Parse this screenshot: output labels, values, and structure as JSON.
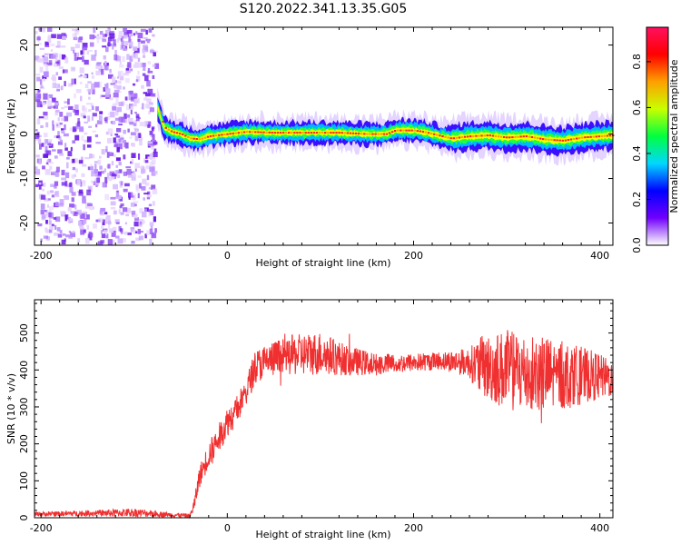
{
  "figure": {
    "title": "S120.2022.341.13.35.G05"
  },
  "chart_data": [
    {
      "type": "heatmap",
      "name": "spectrogram",
      "xlabel": "Height of straight line (km)",
      "ylabel": "Frequency (Hz)",
      "xlim": [
        -207,
        414
      ],
      "ylim": [
        -25,
        24
      ],
      "xticks": [
        -200,
        0,
        200,
        400
      ],
      "yticks": [
        -20,
        -10,
        0,
        10,
        20
      ],
      "colorbar": {
        "label": "Normalized spectral amplitude",
        "range": [
          0,
          0.95
        ],
        "ticks": [
          0.0,
          0.2,
          0.4,
          0.6,
          0.8
        ],
        "colors": [
          "#ffffff",
          "#7000ff",
          "#0000ff",
          "#00d8ff",
          "#00ff40",
          "#c8ff00",
          "#ffa000",
          "#ff0000",
          "#ff1060"
        ]
      },
      "noise_region_x": [
        -207,
        -75
      ],
      "ridge": {
        "x": [
          -75,
          -68,
          -60,
          -50,
          -40,
          -30,
          -20,
          0,
          20,
          50,
          80,
          120,
          150,
          170,
          180,
          200,
          210,
          220,
          240,
          260,
          280,
          300,
          320,
          340,
          360,
          380,
          400,
          414
        ],
        "freq": [
          6.0,
          1.5,
          0.5,
          0.0,
          -1.0,
          -1.2,
          -0.5,
          0.0,
          0.5,
          0.3,
          0.3,
          0.3,
          0.0,
          0.0,
          0.8,
          0.8,
          0.5,
          0.0,
          -1.0,
          -0.5,
          -0.3,
          -0.8,
          -0.5,
          -1.2,
          -1.5,
          -0.8,
          -0.5,
          -0.3
        ]
      }
    },
    {
      "type": "line",
      "name": "snr",
      "xlabel": "Height of straight line (km)",
      "ylabel": "SNR (10 * v/v)",
      "xlim": [
        -207,
        414
      ],
      "ylim": [
        0,
        590
      ],
      "xticks": [
        -200,
        0,
        200,
        400
      ],
      "yticks": [
        0,
        100,
        200,
        300,
        400,
        500
      ],
      "line_color": "#f03030",
      "envelope": {
        "x": [
          -207,
          -150,
          -100,
          -60,
          -40,
          -35,
          -30,
          -20,
          -10,
          0,
          10,
          20,
          30,
          50,
          70,
          100,
          130,
          160,
          200,
          230,
          260,
          270,
          300,
          330,
          360,
          390,
          414
        ],
        "mean": [
          10,
          12,
          14,
          8,
          5,
          40,
          110,
          170,
          210,
          260,
          290,
          340,
          410,
          430,
          440,
          445,
          425,
          415,
          420,
          425,
          420,
          410,
          400,
          390,
          385,
          385,
          375
        ],
        "amp": [
          6,
          8,
          12,
          6,
          6,
          20,
          30,
          35,
          40,
          40,
          40,
          40,
          45,
          50,
          55,
          60,
          40,
          30,
          25,
          25,
          40,
          80,
          110,
          110,
          95,
          70,
          50
        ]
      }
    }
  ]
}
